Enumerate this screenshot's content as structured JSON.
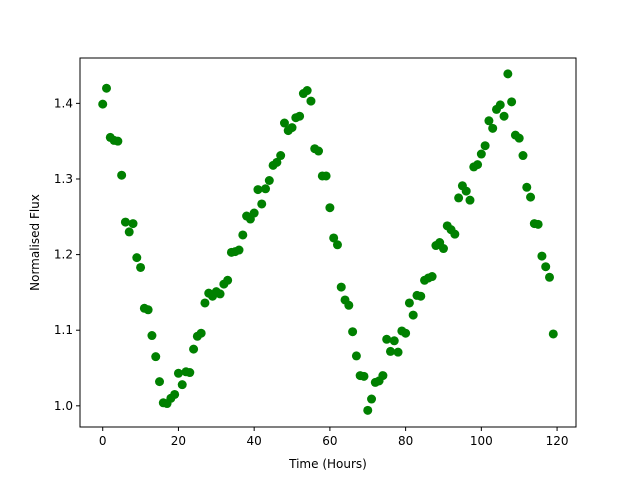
{
  "chart_data": {
    "type": "scatter",
    "title": "",
    "xlabel": "Time (Hours)",
    "ylabel": "Normalised Flux",
    "xlim": [
      -6,
      125
    ],
    "ylim": [
      0.972,
      1.46
    ],
    "xticks": [
      0,
      20,
      40,
      60,
      80,
      100,
      120
    ],
    "yticks": [
      1.0,
      1.1,
      1.2,
      1.3,
      1.4
    ],
    "ytick_labels": [
      "1.0",
      "1.1",
      "1.2",
      "1.3",
      "1.4"
    ],
    "grid": false,
    "marker_color": "#008000",
    "series": [
      {
        "x": [
          0,
          1,
          2,
          3,
          4,
          5,
          6,
          7,
          8,
          9,
          10,
          11,
          12,
          13,
          14,
          15,
          16,
          17,
          18,
          19,
          20,
          21,
          22,
          23,
          24,
          25,
          26,
          27,
          28,
          29,
          30,
          31,
          32,
          33,
          34,
          35,
          36,
          37,
          38,
          39,
          40,
          41,
          42,
          43,
          44,
          45,
          46,
          47,
          48,
          49,
          50,
          51,
          52,
          53,
          54,
          55,
          56,
          57,
          58,
          59,
          60,
          61,
          62,
          63,
          64,
          65,
          66,
          67,
          68,
          69,
          70,
          71,
          72,
          73,
          74,
          75,
          76,
          77,
          78,
          79,
          80,
          81,
          82,
          83,
          84,
          85,
          86,
          87,
          88,
          89,
          90,
          91,
          92,
          93,
          94,
          95,
          96,
          97,
          98,
          99,
          100,
          101,
          102,
          103,
          104,
          105,
          106,
          107,
          108,
          109,
          110,
          111,
          112,
          113,
          114,
          115,
          116,
          117,
          118,
          119
        ],
        "y": [
          1.399,
          1.42,
          1.355,
          1.351,
          1.35,
          1.305,
          1.243,
          1.23,
          1.241,
          1.196,
          1.183,
          1.129,
          1.127,
          1.093,
          1.065,
          1.032,
          1.004,
          1.003,
          1.01,
          1.015,
          1.043,
          1.028,
          1.045,
          1.044,
          1.075,
          1.092,
          1.096,
          1.136,
          1.149,
          1.145,
          1.151,
          1.148,
          1.161,
          1.166,
          1.203,
          1.204,
          1.206,
          1.226,
          1.251,
          1.247,
          1.255,
          1.286,
          1.267,
          1.287,
          1.298,
          1.318,
          1.322,
          1.331,
          1.374,
          1.364,
          1.368,
          1.381,
          1.383,
          1.413,
          1.417,
          1.403,
          1.34,
          1.337,
          1.304,
          1.304,
          1.262,
          1.222,
          1.213,
          1.157,
          1.14,
          1.133,
          1.098,
          1.066,
          1.04,
          1.039,
          0.994,
          1.009,
          1.031,
          1.033,
          1.04,
          1.088,
          1.072,
          1.086,
          1.071,
          1.099,
          1.096,
          1.136,
          1.12,
          1.146,
          1.145,
          1.166,
          1.169,
          1.171,
          1.212,
          1.216,
          1.208,
          1.238,
          1.233,
          1.227,
          1.275,
          1.291,
          1.284,
          1.272,
          1.316,
          1.319,
          1.333,
          1.344,
          1.377,
          1.367,
          1.392,
          1.398,
          1.383,
          1.439,
          1.402,
          1.358,
          1.354,
          1.331,
          1.289,
          1.276,
          1.241,
          1.24,
          1.198,
          1.184,
          1.17,
          1.095
        ]
      }
    ]
  }
}
